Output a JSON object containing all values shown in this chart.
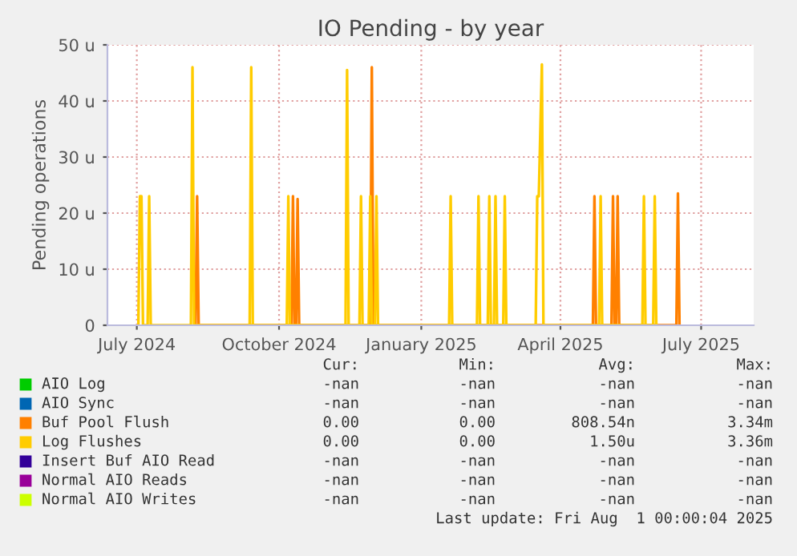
{
  "chart_data": {
    "type": "line",
    "title": "IO Pending - by year",
    "ylabel": "Pending operations",
    "xlim": [
      "2024-06-12",
      "2025-08-04"
    ],
    "xticks": [
      {
        "value": "2024-07-01",
        "label": "July 2024"
      },
      {
        "value": "2024-10-01",
        "label": "October 2024"
      },
      {
        "value": "2025-01-01",
        "label": "January 2025"
      },
      {
        "value": "2025-04-01",
        "label": "April 2025"
      },
      {
        "value": "2025-07-01",
        "label": "July 2025"
      }
    ],
    "ylim": [
      0,
      50
    ],
    "yticks": [
      0,
      {
        "value": 10,
        "label": "10 u"
      },
      {
        "value": 20,
        "label": "20 u"
      },
      {
        "value": 30,
        "label": "30 u"
      },
      {
        "value": 40,
        "label": "40 u"
      },
      {
        "value": 50,
        "label": "50 u"
      }
    ],
    "grid": true,
    "legend": "bottom",
    "line_style": "solid",
    "marker": "none",
    "series": [
      {
        "name": "AIO Log",
        "color": "#00cc00"
      },
      {
        "name": "AIO Sync",
        "color": "#0066b3"
      },
      {
        "name": "Buf Pool Flush",
        "color": "#ff8000",
        "x": [
          "2024-08-08",
          "2024-08-09",
          "2024-08-10",
          "2024-10-09",
          "2024-10-10",
          "2024-10-11",
          "2024-10-12",
          "2024-10-13",
          "2024-10-14",
          "2024-11-29",
          "2024-11-30",
          "2024-12-01",
          "2025-04-22",
          "2025-04-23",
          "2025-04-24",
          "2025-05-04",
          "2025-05-05",
          "2025-05-06",
          "2025-05-07",
          "2025-05-08",
          "2025-05-09",
          "2025-06-15",
          "2025-06-16",
          "2025-06-17"
        ],
        "values": [
          0,
          23,
          0,
          0,
          23,
          0,
          0,
          22.5,
          0,
          0,
          46,
          0,
          0,
          23,
          0,
          0,
          23,
          0,
          0,
          23,
          0,
          0,
          23.5,
          0
        ]
      },
      {
        "name": "Log Flushes",
        "color": "#ffcc00",
        "x": [
          "2024-07-02",
          "2024-07-03",
          "2024-07-04",
          "2024-07-05",
          "2024-07-08",
          "2024-07-09",
          "2024-07-10",
          "2024-08-05",
          "2024-08-06",
          "2024-08-07",
          "2024-09-12",
          "2024-09-13",
          "2024-09-14",
          "2024-10-06",
          "2024-10-07",
          "2024-10-08",
          "2024-11-13",
          "2024-11-14",
          "2024-11-15",
          "2024-11-22",
          "2024-11-23",
          "2024-11-24",
          "2024-11-28",
          "2024-11-29",
          "2024-11-30",
          "2024-12-02",
          "2024-12-03",
          "2024-12-04",
          "2025-01-19",
          "2025-01-20",
          "2025-01-21",
          "2025-02-06",
          "2025-02-07",
          "2025-02-08",
          "2025-02-13",
          "2025-02-14",
          "2025-02-15",
          "2025-02-17",
          "2025-02-18",
          "2025-02-19",
          "2025-02-23",
          "2025-02-24",
          "2025-02-25",
          "2025-03-16",
          "2025-03-17",
          "2025-03-18",
          "2025-03-20",
          "2025-03-21",
          "2025-04-26",
          "2025-04-27",
          "2025-04-28",
          "2025-05-24",
          "2025-05-25",
          "2025-05-26",
          "2025-05-31",
          "2025-06-01",
          "2025-06-02"
        ],
        "values": [
          0,
          23,
          23,
          0,
          0,
          23,
          0,
          0,
          46,
          0,
          0,
          46,
          0,
          0,
          23,
          0,
          0,
          45.5,
          0,
          0,
          23,
          0,
          0,
          23,
          0,
          0,
          23,
          0,
          0,
          23,
          0,
          0,
          23,
          0,
          0,
          23,
          0,
          0,
          23,
          0,
          0,
          23,
          0,
          0,
          23,
          23,
          46.5,
          0,
          0,
          23,
          0,
          0,
          23,
          0,
          0,
          23,
          0
        ]
      },
      {
        "name": "Insert Buf AIO Read",
        "color": "#330099"
      },
      {
        "name": "Normal AIO Reads",
        "color": "#990099"
      },
      {
        "name": "Normal AIO Writes",
        "color": "#ccff00"
      }
    ],
    "annotations": [
      "Cur:",
      "Min:",
      "Avg:",
      "Max:",
      "-nan",
      "-nan",
      "-nan",
      "-nan",
      "-nan",
      "-nan",
      "-nan",
      "-nan",
      "0.00",
      "0.00",
      "808.54n",
      "3.34m",
      "0.00",
      "0.00",
      "1.50u",
      "3.36m",
      "-nan",
      "-nan",
      "-nan",
      "-nan",
      "-nan",
      "-nan",
      "-nan",
      "-nan",
      "-nan",
      "-nan",
      "-nan",
      "-nan",
      "Last update: Fri Aug  1 00:00:04 2025"
    ]
  }
}
